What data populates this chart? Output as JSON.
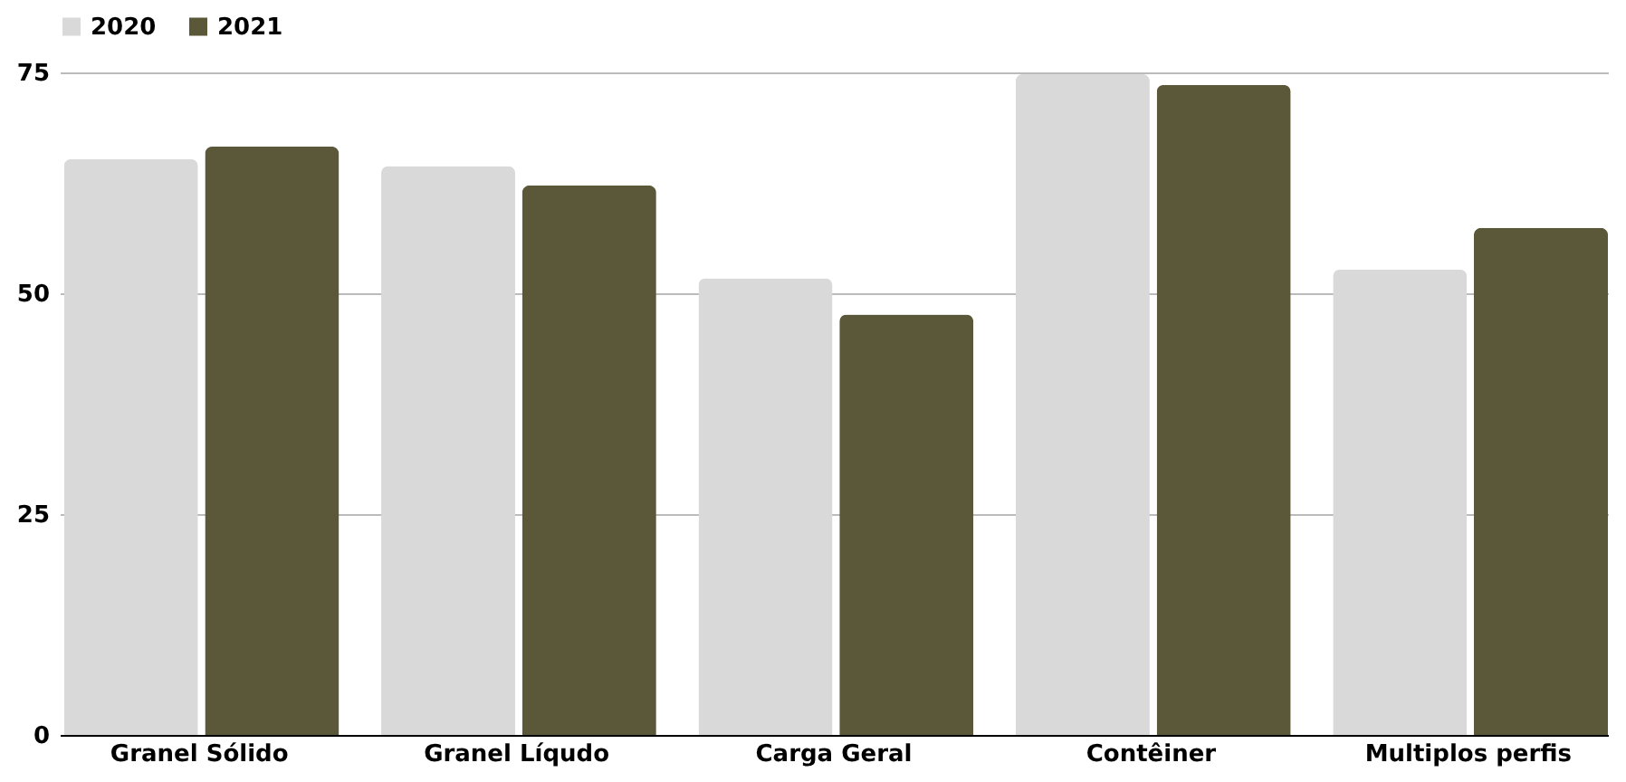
{
  "chart_data": {
    "type": "bar",
    "categories": [
      "Granel Sólido",
      "Granel Líqudo",
      "Carga Geral",
      "Contêiner",
      "Multiplos perfis"
    ],
    "series": [
      {
        "name": "2020",
        "color": "#d9d9d9",
        "values": [
          65.2,
          64.4,
          51.7,
          74.8,
          52.7
        ]
      },
      {
        "name": "2021",
        "color": "#5a5839",
        "values": [
          66.6,
          62.2,
          47.6,
          73.6,
          57.4
        ]
      }
    ],
    "ylim": [
      0,
      75
    ],
    "yticks": [
      0,
      25,
      50,
      75
    ],
    "grid": "y",
    "legend": "top"
  }
}
